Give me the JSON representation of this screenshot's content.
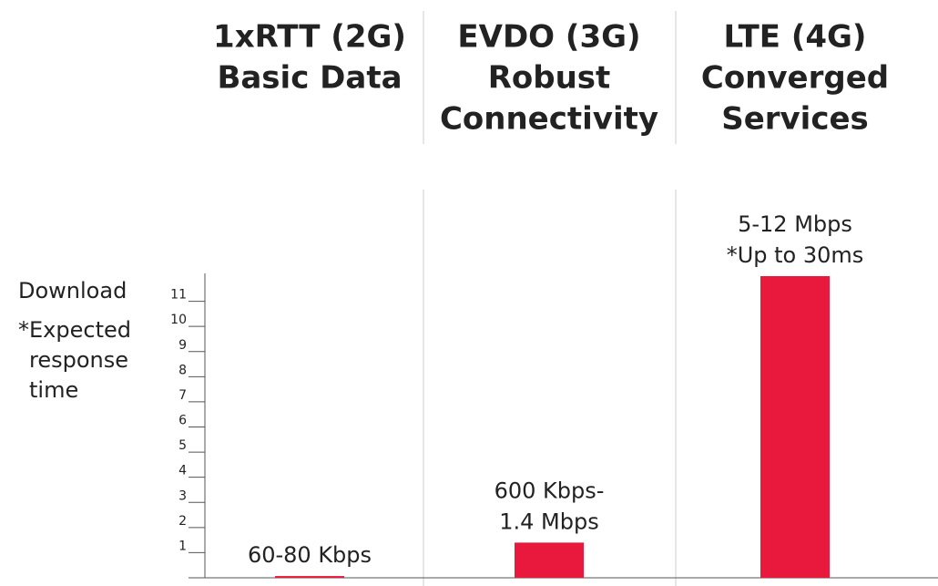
{
  "chart_data": {
    "type": "bar",
    "categories": [
      [
        "1xRTT (2G)",
        "Basic Data"
      ],
      [
        "EVDO (3G)",
        "Robust",
        "Connectivity"
      ],
      [
        "LTE (4G)",
        "Converged",
        "Services"
      ]
    ],
    "values": [
      0.07,
      1.4,
      12
    ],
    "value_labels": [
      [
        "60-80 Kbps"
      ],
      [
        "600 Kbps-",
        "1.4 Mbps"
      ],
      [
        "5-12 Mbps",
        "*Up to 30ms"
      ]
    ],
    "color": "#e8193c",
    "y_label": [
      "Download",
      "*Expected",
      "response",
      "time"
    ],
    "ylim": [
      0,
      12
    ],
    "yticks": [
      1,
      2,
      3,
      4,
      5,
      6,
      7,
      8,
      9,
      10,
      11
    ]
  }
}
